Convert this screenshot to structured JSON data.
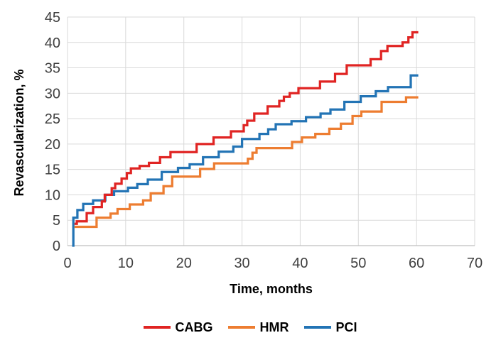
{
  "chart_data": {
    "type": "line",
    "subtype": "step-after",
    "title": "",
    "xlabel": "Time, months",
    "ylabel": "Revascularization, %",
    "xlim": [
      0,
      70
    ],
    "ylim": [
      0,
      45
    ],
    "x_ticks": [
      0,
      10,
      20,
      30,
      40,
      50,
      60,
      70
    ],
    "y_ticks": [
      0,
      5,
      10,
      15,
      20,
      25,
      30,
      35,
      40,
      45
    ],
    "grid": true,
    "legend_position": "bottom",
    "series": [
      {
        "name": "CABG",
        "color": "#E02423",
        "points": [
          [
            1.2,
            4.3
          ],
          [
            1.6,
            4.8
          ],
          [
            3.3,
            6.4
          ],
          [
            4.4,
            7.6
          ],
          [
            5.9,
            8.7
          ],
          [
            6.4,
            10.0
          ],
          [
            7.6,
            11.3
          ],
          [
            8.2,
            12.2
          ],
          [
            9.3,
            13.2
          ],
          [
            10.2,
            14.3
          ],
          [
            10.9,
            15.2
          ],
          [
            12.4,
            15.7
          ],
          [
            14.0,
            16.3
          ],
          [
            15.9,
            17.4
          ],
          [
            17.7,
            18.4
          ],
          [
            22.2,
            20.0
          ],
          [
            25.1,
            21.3
          ],
          [
            28.1,
            22.5
          ],
          [
            30.3,
            23.7
          ],
          [
            30.9,
            24.6
          ],
          [
            32.1,
            26.0
          ],
          [
            34.4,
            27.4
          ],
          [
            36.4,
            28.5
          ],
          [
            37.2,
            29.3
          ],
          [
            38.2,
            30.0
          ],
          [
            39.7,
            31.0
          ],
          [
            43.4,
            32.3
          ],
          [
            46.0,
            33.8
          ],
          [
            48.0,
            35.5
          ],
          [
            52.1,
            36.7
          ],
          [
            53.9,
            38.3
          ],
          [
            55.0,
            39.3
          ],
          [
            57.6,
            40.0
          ],
          [
            58.6,
            41.0
          ],
          [
            59.3,
            42.0
          ],
          [
            60.3,
            42.0
          ]
        ]
      },
      {
        "name": "HMR",
        "color": "#ED7D31",
        "points": [
          [
            1.2,
            3.7
          ],
          [
            5.0,
            5.5
          ],
          [
            7.4,
            6.3
          ],
          [
            8.6,
            7.2
          ],
          [
            10.7,
            8.1
          ],
          [
            13.0,
            8.9
          ],
          [
            14.3,
            10.3
          ],
          [
            16.5,
            11.7
          ],
          [
            18.0,
            13.6
          ],
          [
            22.8,
            15.1
          ],
          [
            25.2,
            16.2
          ],
          [
            31.0,
            17.1
          ],
          [
            31.8,
            18.3
          ],
          [
            32.5,
            19.2
          ],
          [
            38.6,
            20.4
          ],
          [
            40.3,
            21.3
          ],
          [
            42.6,
            22.0
          ],
          [
            45.0,
            23.0
          ],
          [
            47.0,
            24.0
          ],
          [
            49.0,
            25.5
          ],
          [
            50.5,
            26.4
          ],
          [
            54.0,
            28.3
          ],
          [
            58.2,
            29.2
          ],
          [
            60.3,
            29.2
          ]
        ]
      },
      {
        "name": "PCI",
        "color": "#2374B5",
        "points": [
          [
            0.8,
            0.0
          ],
          [
            1.0,
            5.5
          ],
          [
            1.7,
            7.0
          ],
          [
            2.7,
            8.2
          ],
          [
            4.4,
            8.9
          ],
          [
            6.5,
            10.0
          ],
          [
            8.0,
            10.7
          ],
          [
            10.4,
            11.4
          ],
          [
            12.0,
            12.1
          ],
          [
            13.8,
            13.0
          ],
          [
            16.2,
            14.5
          ],
          [
            19.0,
            15.3
          ],
          [
            21.0,
            16.0
          ],
          [
            23.3,
            17.4
          ],
          [
            26.0,
            18.5
          ],
          [
            28.5,
            19.5
          ],
          [
            30.0,
            21.0
          ],
          [
            33.0,
            22.0
          ],
          [
            34.5,
            22.9
          ],
          [
            35.8,
            23.9
          ],
          [
            38.5,
            24.5
          ],
          [
            41.0,
            25.3
          ],
          [
            43.5,
            26.0
          ],
          [
            45.2,
            26.8
          ],
          [
            47.6,
            28.3
          ],
          [
            50.4,
            29.4
          ],
          [
            53.0,
            30.4
          ],
          [
            55.1,
            31.2
          ],
          [
            59.0,
            33.5
          ],
          [
            60.3,
            33.5
          ]
        ]
      }
    ],
    "colors": {
      "background": "#FFFFFF",
      "grid": "#D9D9D9",
      "axis": "#BFBFBF",
      "tick_text": "#3F3F3F",
      "title_text": "#000000"
    }
  }
}
